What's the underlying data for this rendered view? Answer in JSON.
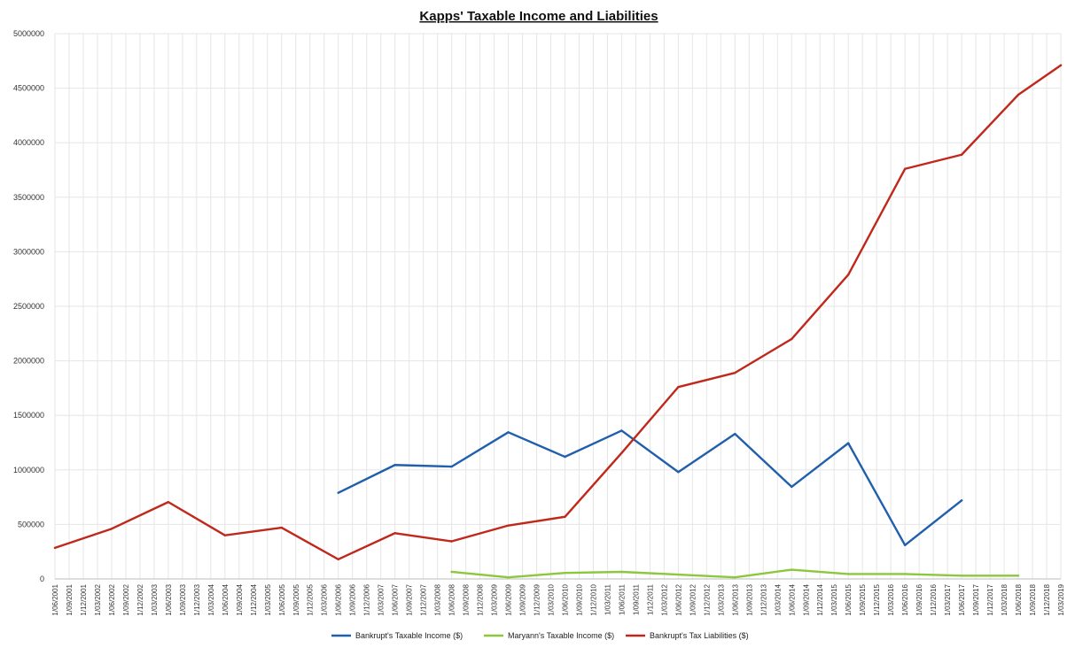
{
  "chart_data": {
    "type": "line",
    "title": "Kapps' Taxable Income and Liabilities",
    "xlabel": "",
    "ylabel": "",
    "ylim": [
      0,
      5000000
    ],
    "yticks": [
      "0",
      "500000",
      "1000000",
      "1500000",
      "2000000",
      "2500000",
      "3000000",
      "3500000",
      "4000000",
      "4500000",
      "5000000"
    ],
    "grid": true,
    "legend_position": "bottom",
    "categories": [
      "1/06/2001",
      "1/09/2001",
      "1/12/2001",
      "1/03/2002",
      "1/06/2002",
      "1/09/2002",
      "1/12/2002",
      "1/03/2003",
      "1/06/2003",
      "1/09/2003",
      "1/12/2003",
      "1/03/2004",
      "1/06/2004",
      "1/09/2004",
      "1/12/2004",
      "1/03/2005",
      "1/06/2005",
      "1/09/2005",
      "1/12/2005",
      "1/03/2006",
      "1/06/2006",
      "1/09/2006",
      "1/12/2006",
      "1/03/2007",
      "1/06/2007",
      "1/09/2007",
      "1/12/2007",
      "1/03/2008",
      "1/06/2008",
      "1/09/2008",
      "1/12/2008",
      "1/03/2009",
      "1/06/2009",
      "1/09/2009",
      "1/12/2009",
      "1/03/2010",
      "1/06/2010",
      "1/09/2010",
      "1/12/2010",
      "1/03/2011",
      "1/06/2011",
      "1/09/2011",
      "1/12/2011",
      "1/03/2012",
      "1/06/2012",
      "1/09/2012",
      "1/12/2012",
      "1/03/2013",
      "1/06/2013",
      "1/09/2013",
      "1/12/2013",
      "1/03/2014",
      "1/06/2014",
      "1/09/2014",
      "1/12/2014",
      "1/03/2015",
      "1/06/2015",
      "1/09/2015",
      "1/12/2015",
      "1/03/2016",
      "1/06/2016",
      "1/09/2016",
      "1/12/2016",
      "1/03/2017",
      "1/06/2017",
      "1/09/2017",
      "1/12/2017",
      "1/03/2018",
      "1/06/2018",
      "1/09/2018",
      "1/12/2018",
      "1/03/2019"
    ],
    "series": [
      {
        "name": "Bankrupt's Taxable Income ($)",
        "color": "#1f5fad",
        "points": [
          [
            20,
            790000
          ],
          [
            24,
            1045000
          ],
          [
            28,
            1030000
          ],
          [
            32,
            1345000
          ],
          [
            36,
            1120000
          ],
          [
            40,
            1360000
          ],
          [
            44,
            980000
          ],
          [
            48,
            1330000
          ],
          [
            52,
            845000
          ],
          [
            56,
            1245000
          ],
          [
            60,
            310000
          ],
          [
            64,
            720000
          ]
        ]
      },
      {
        "name": "Maryann's Taxable Income ($)",
        "color": "#8dc63f",
        "points": [
          [
            28,
            65000
          ],
          [
            32,
            15000
          ],
          [
            36,
            55000
          ],
          [
            40,
            65000
          ],
          [
            44,
            40000
          ],
          [
            48,
            15000
          ],
          [
            52,
            85000
          ],
          [
            56,
            45000
          ],
          [
            60,
            45000
          ],
          [
            64,
            30000
          ],
          [
            68,
            30000
          ]
        ]
      },
      {
        "name": "Bankrupt's Tax Liabilities ($)",
        "color": "#c0281b",
        "points": [
          [
            0,
            285000
          ],
          [
            4,
            460000
          ],
          [
            8,
            705000
          ],
          [
            12,
            400000
          ],
          [
            16,
            470000
          ],
          [
            20,
            180000
          ],
          [
            24,
            420000
          ],
          [
            28,
            345000
          ],
          [
            32,
            490000
          ],
          [
            36,
            570000
          ],
          [
            40,
            1155000
          ],
          [
            44,
            1760000
          ],
          [
            48,
            1890000
          ],
          [
            52,
            2200000
          ],
          [
            56,
            2790000
          ],
          [
            60,
            3760000
          ],
          [
            64,
            3890000
          ],
          [
            68,
            4440000
          ],
          [
            71,
            4710000
          ]
        ]
      }
    ]
  }
}
